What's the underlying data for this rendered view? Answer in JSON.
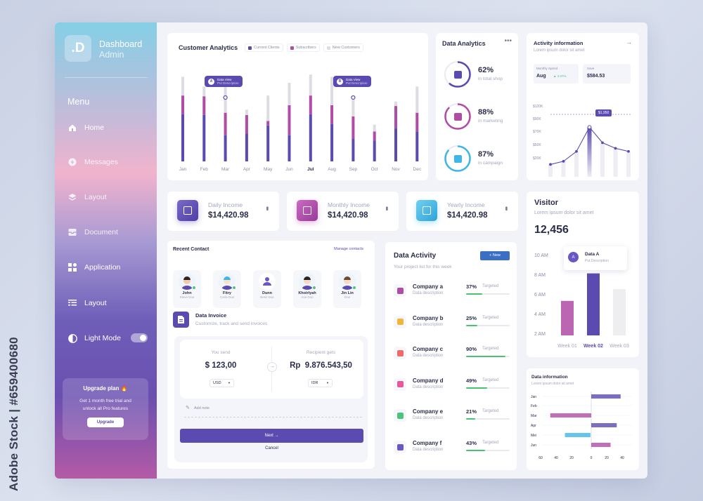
{
  "watermark": "Adobe Stock | #659400680",
  "sidebar": {
    "logo": ".D",
    "title": "Dashboard",
    "subtitle": "Admin",
    "menu_title": "Menu",
    "items": [
      {
        "label": "Home",
        "icon": "home-icon",
        "active": true
      },
      {
        "label": "Messages",
        "icon": "lightning-icon",
        "active": false
      },
      {
        "label": "Layout",
        "icon": "layers-icon",
        "active": false
      },
      {
        "label": "Document",
        "icon": "inbox-icon",
        "active": false
      },
      {
        "label": "Application",
        "icon": "apps-grid-icon",
        "active": false
      },
      {
        "label": "Layout",
        "icon": "list-icon",
        "active": false
      }
    ],
    "light_mode_label": "Light Mode",
    "light_mode_on": true,
    "upgrade": {
      "title": "Upgrade plan 🔥",
      "description": "Get 1 month free trial and unlock all Pro features",
      "button": "Upgrade"
    }
  },
  "customer_analytics": {
    "title": "Customer Analytics",
    "legend": [
      "Current Clients",
      "Subscribers",
      "New Customers"
    ],
    "tooltips": [
      {
        "badge": "A",
        "title": "Data View",
        "sub": "Put Description"
      },
      {
        "badge": "B",
        "title": "Data View",
        "sub": "Put Description"
      }
    ]
  },
  "data_analytics": {
    "title": "Data Analytics",
    "items": [
      {
        "value": "62%",
        "label": "in total shop",
        "color": "#5b4bb0",
        "percent": 62
      },
      {
        "value": "88%",
        "label": "in marketing",
        "color": "#b04ba6",
        "percent": 88
      },
      {
        "value": "87%",
        "label": "in campaign",
        "color": "#3fb6e6",
        "percent": 87
      }
    ]
  },
  "activity": {
    "title": "Activity information",
    "subtitle": "Lorem ipsum dolor sit amet",
    "monthly_spend_label": "Monthly Spend",
    "monthly_spend_value": "Aug",
    "monthly_change": "2.07%",
    "save_label": "Save",
    "save_value": "$584.53",
    "tooltip": "$1,950"
  },
  "incomes": [
    {
      "label": "Daily Income",
      "value": "$14,420.98",
      "color": "#5b4bb0"
    },
    {
      "label": "Monthly Income",
      "value": "$14,420.98",
      "color": "#b04ba6"
    },
    {
      "label": "Yearly Income",
      "value": "$14,420.98",
      "color": "#3fb6e6"
    }
  ],
  "visitor": {
    "title": "Visitor",
    "subtitle": "Lorem ipsum dolor sit amet",
    "value": "12,456",
    "tooltip_badge": "A",
    "tooltip_title": "Data A",
    "tooltip_sub": "Put Description"
  },
  "recent_contact": {
    "title": "Recent Contact",
    "manage_link": "Manage contacts",
    "contacts": [
      {
        "name": "John",
        "role": "Steve Doe"
      },
      {
        "name": "Fitry",
        "role": "Carla Doe"
      },
      {
        "name": "Dunn",
        "role": "Betis Doe"
      },
      {
        "name": "Khoirlyah",
        "role": "Aoe Doe"
      },
      {
        "name": "Jin Lin",
        "role": "Doe"
      }
    ]
  },
  "data_invoice": {
    "title": "Data Invoice",
    "subtitle": "Customize, track and send invoices",
    "you_send_label": "You send",
    "you_send_value": "$ 123,00",
    "you_send_currency": "USD",
    "recipient_label": "Recipient gets",
    "recipient_value": "Rp  9.876.543,50",
    "recipient_currency": "IDR",
    "note_placeholder": "Add note",
    "next_button": "Next →",
    "cancel_button": "Cancel"
  },
  "data_activity": {
    "title": "Data Activity",
    "subtitle": "Your project list for this week",
    "new_button": "+ New",
    "rows": [
      {
        "company": "Company a",
        "desc": "Data description",
        "percent": 37,
        "percent_label": "37%",
        "status": "Targeted",
        "icon_color": "#b04ba6"
      },
      {
        "company": "Company b",
        "desc": "Data description",
        "percent": 25,
        "percent_label": "25%",
        "status": "Targeted",
        "icon_color": "#f2b53c"
      },
      {
        "company": "Company c",
        "desc": "Data description",
        "percent": 90,
        "percent_label": "90%",
        "status": "Targeted",
        "icon_color": "#f06a6a"
      },
      {
        "company": "Company d",
        "desc": "Data description",
        "percent": 49,
        "percent_label": "49%",
        "status": "Targeted",
        "icon_color": "#e8579a"
      },
      {
        "company": "Company e",
        "desc": "Data description",
        "percent": 21,
        "percent_label": "21%",
        "status": "Targeted",
        "icon_color": "#4dc47b"
      },
      {
        "company": "Company f",
        "desc": "Data description",
        "percent": 43,
        "percent_label": "43%",
        "status": "Targeted",
        "icon_color": "#6a56c4"
      }
    ]
  },
  "data_information": {
    "title": "Data information",
    "subtitle": "Lorem ipsum dolor sit amet"
  },
  "chart_data": [
    {
      "type": "bar",
      "stacked": true,
      "categories": [
        "Jan",
        "Feb",
        "Mar",
        "Apr",
        "May",
        "Jun",
        "Jul",
        "Aug",
        "Sep",
        "Oct",
        "Nov",
        "Dec"
      ],
      "series": [
        {
          "name": "Current Clients",
          "color": "#5b4bb0",
          "values": [
            63,
            62,
            35,
            37,
            48,
            35,
            63,
            50,
            30,
            28,
            44,
            40
          ]
        },
        {
          "name": "Subscribers",
          "color": "#b04ba6",
          "values": [
            25,
            25,
            30,
            25,
            6,
            40,
            25,
            25,
            30,
            12,
            30,
            25
          ]
        },
        {
          "name": "New Customers",
          "color": "#dcdde3",
          "values": [
            25,
            13,
            42,
            7,
            34,
            30,
            28,
            38,
            22,
            9,
            6,
            35
          ]
        }
      ],
      "ylim": [
        0,
        120
      ]
    },
    {
      "type": "line",
      "x": [
        "1K",
        "2K",
        "3K",
        "4K",
        "5K",
        "6K",
        "20K"
      ],
      "y": [
        20000,
        25000,
        41000,
        80000,
        55000,
        46000,
        41000
      ],
      "yticks": [
        "$120K",
        "$90K",
        "$70K",
        "$50K",
        "$20K"
      ],
      "ylim": [
        0,
        120000
      ]
    },
    {
      "type": "bar",
      "categories": [
        "Week 01",
        "Week 02",
        "Week 03"
      ],
      "values": [
        5.3,
        8.1,
        6.5
      ],
      "yticks": [
        "10 AM",
        "8 AM",
        "6 AM",
        "4 AM",
        "2 AM"
      ],
      "ylim": [
        2,
        10
      ]
    },
    {
      "type": "bar",
      "orientation": "horizontal",
      "categories": [
        "Jan",
        "Feb",
        "Mar",
        "Apr",
        "Mei",
        "Jun"
      ],
      "series": [
        {
          "color": "#5b4bb0",
          "values": [
            [
              0,
              38
            ],
            null,
            null,
            [
              0,
              33
            ],
            null,
            null
          ]
        },
        {
          "color": "#b04ba6",
          "values": [
            null,
            null,
            [
              -53,
              0
            ],
            null,
            null,
            [
              0,
              25
            ]
          ]
        },
        {
          "color": "#3fb6e6",
          "values": [
            null,
            null,
            null,
            null,
            [
              -34,
              -1
            ],
            null
          ]
        }
      ],
      "xticks": [
        "60",
        "40",
        "20",
        "0",
        "20",
        "40"
      ],
      "xlim": [
        -60,
        40
      ]
    }
  ]
}
